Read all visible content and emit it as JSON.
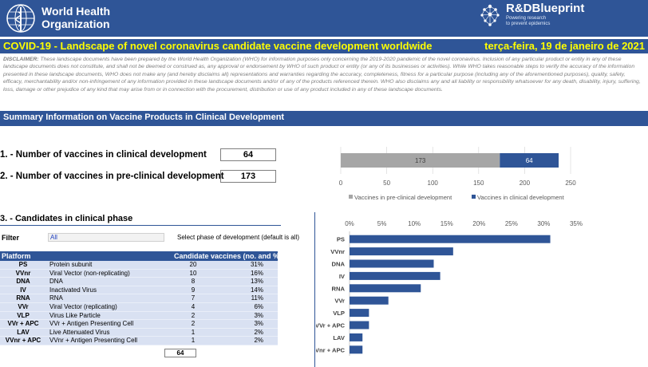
{
  "header": {
    "who_line1": "World Health",
    "who_line2": "Organization",
    "rd_title": "R&DBlueprint",
    "rd_sub1": "Powering research",
    "rd_sub2": "to prevent epidemics"
  },
  "title": {
    "text": "COVID-19 - Landscape of novel coronavirus candidate vaccine development worldwide",
    "date": "terça-feira, 19 de janeiro de 2021"
  },
  "disclaimer": {
    "label": "DISCLAIMER:",
    "text": "These landscape documents have been prepared by the World Health Organization (WHO) for information purposes only concerning the 2019-2020 pandemic of the novel coronavirus. Inclusion of any particular product or entity in any of these landscape documents does not constitute, and shall not be deemed or construed as, any approval or endorsement by WHO of such product or entity (or any of its businesses or activities).  While WHO takes reasonable steps to verify the accuracy of the information presented in these landscape documents, WHO does not make any (and hereby disclaims all) representations and warranties regarding the accuracy, completeness, fitness for a particular purpose (including any of the aforementioned purposes),  quality, safety, efficacy, merchantability and/or non-infringement of any information provided in these landscape documents and/or of any of the products referenced therein.  WHO also disclaims any and all liability or responsibility whatsoever for any death, disability, injury, suffering, loss, damage or other prejudice of any kind that may arise from or in connection with the procurement, distribution or use of any product included in any of these landscape documents."
  },
  "summary": {
    "section_title": "Summary Information on Vaccine Products in Clinical Development",
    "kpi1_label": "1. -  Number of vaccines in clinical development",
    "kpi1_value": "64",
    "kpi2_label": "2. - Number of vaccines in pre-clinical development",
    "kpi2_value": "173"
  },
  "candidates": {
    "title": "3. -  Candidates in clinical phase",
    "filter_label": "Filter",
    "filter_value": "All",
    "phase_note": "Select phase of development (default is all)",
    "table_headers": [
      "Platform",
      "Candidate vaccines (no. and %)"
    ],
    "rows": [
      {
        "code": "PS",
        "desc": "Protein subunit",
        "n": "20",
        "pct": "31%"
      },
      {
        "code": "VVnr",
        "desc": "Viral Vector (non-replicating)",
        "n": "10",
        "pct": "16%"
      },
      {
        "code": "DNA",
        "desc": "DNA",
        "n": "8",
        "pct": "13%"
      },
      {
        "code": "IV",
        "desc": "Inactivated Virus",
        "n": "9",
        "pct": "14%"
      },
      {
        "code": "RNA",
        "desc": "RNA",
        "n": "7",
        "pct": "11%"
      },
      {
        "code": "VVr",
        "desc": "Viral Vector (replicating)",
        "n": "4",
        "pct": "6%"
      },
      {
        "code": "VLP",
        "desc": "Virus Like Particle",
        "n": "2",
        "pct": "3%"
      },
      {
        "code": "VVr + APC",
        "desc": "VVr + Antigen Presenting Cell",
        "n": "2",
        "pct": "3%"
      },
      {
        "code": "LAV",
        "desc": "Live Attenuated Virus",
        "n": "1",
        "pct": "2%"
      },
      {
        "code": "VVnr + APC",
        "desc": "VVnr + Antigen Presenting Cell",
        "n": "1",
        "pct": "2%"
      }
    ],
    "total": "64"
  },
  "colors": {
    "brand_blue": "#2f5597",
    "title_yellow": "#ffff00",
    "preclinical_gray": "#a6a6a6",
    "table_fill": "#d9e1f2"
  },
  "chart_data": [
    {
      "type": "bar",
      "orientation": "horizontal-stacked",
      "categories": [
        ""
      ],
      "series": [
        {
          "name": "Vaccines in pre-clinical development",
          "values": [
            173
          ],
          "color": "#a6a6a6"
        },
        {
          "name": "Vaccines in clinical development",
          "values": [
            64
          ],
          "color": "#2f5597"
        }
      ],
      "xticks": [
        "0",
        "50",
        "100",
        "150",
        "200",
        "250"
      ],
      "xlim": [
        0,
        250
      ],
      "legend": "bottom",
      "grid": true
    },
    {
      "type": "bar",
      "orientation": "horizontal",
      "categories": [
        "PS",
        "VVnr",
        "DNA",
        "IV",
        "RNA",
        "VVr",
        "VLP",
        "VVr + APC",
        "LAV",
        "VVnr + APC"
      ],
      "values": [
        31,
        16,
        13,
        14,
        11,
        6,
        3,
        3,
        2,
        2
      ],
      "xticks": [
        "0%",
        "5%",
        "10%",
        "15%",
        "20%",
        "25%",
        "30%",
        "35%"
      ],
      "xlim": [
        0,
        35
      ],
      "grid": false
    }
  ]
}
